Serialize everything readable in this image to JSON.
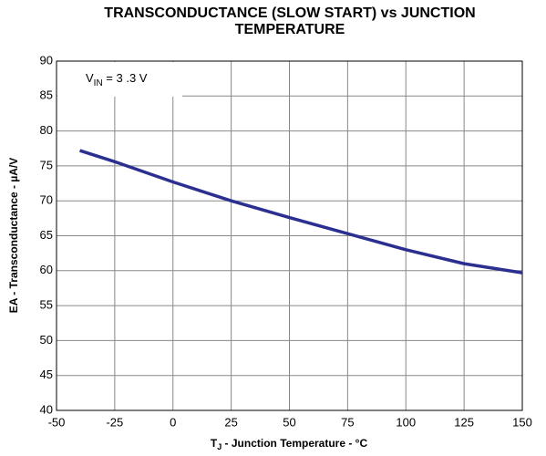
{
  "chart_data": {
    "type": "line",
    "title": "TRANSCONDUCTANCE (SLOW START) vs JUNCTION TEMPERATURE",
    "x_label": {
      "main": "T",
      "sub": "J",
      "rest": " - Junction Temperature - °C"
    },
    "y_label": "EA - Transconductance - µA/V",
    "annotation": {
      "main": "V",
      "sub": "IN",
      "rest": " = 3 .3 V"
    },
    "x": [
      -40,
      -25,
      0,
      25,
      50,
      75,
      100,
      125,
      150
    ],
    "series": [
      {
        "name": "VIN = 3.3 V",
        "color": "#2b2f8f",
        "values": [
          77.2,
          75.6,
          72.7,
          70.0,
          67.6,
          65.3,
          63.0,
          61.0,
          59.7
        ]
      }
    ],
    "xlim": [
      -50,
      150
    ],
    "xticks": [
      -50,
      -25,
      0,
      25,
      50,
      75,
      100,
      125,
      150
    ],
    "ylim": [
      40,
      90
    ],
    "yticks": [
      40,
      45,
      50,
      55,
      60,
      65,
      70,
      75,
      80,
      85,
      90
    ],
    "grid": true
  }
}
